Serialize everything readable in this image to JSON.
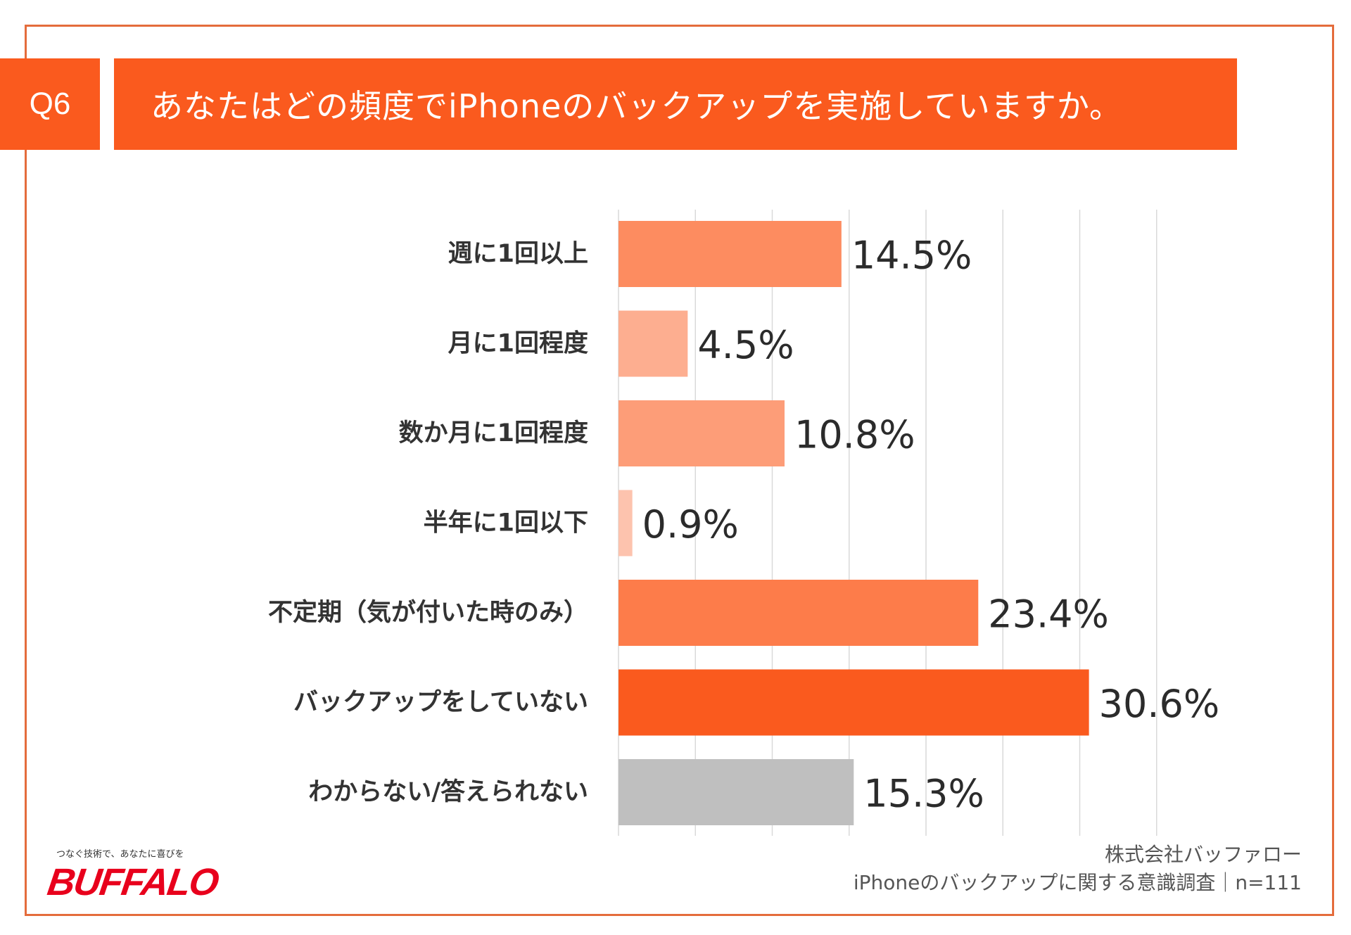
{
  "header": {
    "question_no": "Q6",
    "title": "あなたはどの頻度でiPhoneのバックアップを実施していますか。"
  },
  "footer": {
    "tagline": "つなぐ技術で、あなたに喜びを",
    "logo_text": "BUFFALO",
    "company": "株式会社バッファロー",
    "survey": "iPhoneのバックアップに関する意識調査｜n=111"
  },
  "colors": {
    "accent": "#fa5a1e",
    "frame": "#e46c3c",
    "grid": "#d9d9d9",
    "logo": "#e8001c"
  },
  "chart_data": {
    "type": "bar",
    "orientation": "horizontal",
    "title": "あなたはどの頻度でiPhoneのバックアップを実施していますか。",
    "xlabel": "",
    "ylabel": "",
    "xlim": [
      0,
      35
    ],
    "grid": true,
    "categories": [
      "週に1回以上",
      "月に1回程度",
      "数か月に1回程度",
      "半年に1回以下",
      "不定期（気が付いた時のみ）",
      "バックアップをしていない",
      "わからない/答えられない"
    ],
    "values": [
      14.5,
      4.5,
      10.8,
      0.9,
      23.4,
      30.6,
      15.3
    ],
    "value_labels": [
      "14.5%",
      "4.5%",
      "10.8%",
      "0.9%",
      "23.4%",
      "30.6%",
      "15.3%"
    ],
    "bar_colors": [
      "#fd8c60",
      "#fdae90",
      "#fd9d78",
      "#fdc3ae",
      "#fd7c4a",
      "#fa5a1e",
      "#bfbfbf"
    ]
  }
}
